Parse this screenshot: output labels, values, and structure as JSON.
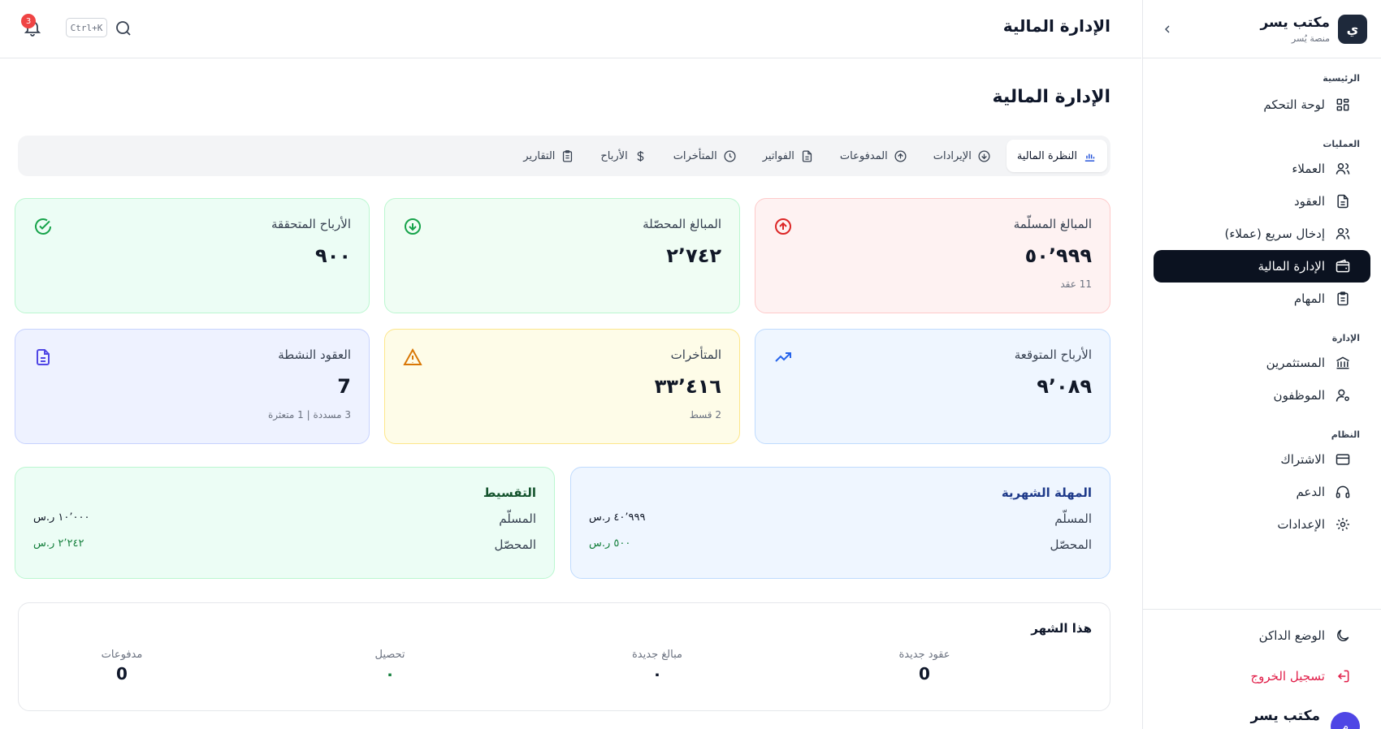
{
  "sidebar": {
    "logo_letter": "ي",
    "brand_name": "مكتب يسر",
    "brand_sub": "منصة يُسر",
    "groups": {
      "main": "الرئيسية",
      "operations": "العمليات",
      "management": "الإدارة",
      "system": "النظام"
    },
    "items": {
      "dashboard": "لوحة التحكم",
      "clients": "العملاء",
      "contracts": "العقود",
      "quick_entry": "إدخال سريع (عملاء)",
      "finance": "الإدارة المالية",
      "tasks": "المهام",
      "investors": "المستثمرين",
      "employees": "الموظفون",
      "subscription": "الاشتراك",
      "support": "الدعم",
      "settings": "الإعدادات",
      "dark_mode": "الوضع الداكن",
      "logout": "تسجيل الخروج"
    },
    "user": {
      "initial": "م",
      "name": "مكتب يسر"
    }
  },
  "header": {
    "title": "الإدارة المالية",
    "shortcut": "Ctrl+K",
    "notifications": "3"
  },
  "main": {
    "title": "الإدارة المالية",
    "tabs": {
      "overview": "النظرة المالية",
      "revenues": "الإيرادات",
      "payments": "المدفوعات",
      "invoices": "الفواتير",
      "overdue": "المتأخرات",
      "profits": "الأرباح",
      "reports": "التقارير"
    },
    "cards": {
      "delivered": {
        "title": "المبالغ المسلّمة",
        "value": "٥٠٬٩٩٩",
        "sub": "11 عقد"
      },
      "collected": {
        "title": "المبالغ المحصّلة",
        "value": "٢٬٧٤٢"
      },
      "realized": {
        "title": "الأرباح المتحققة",
        "value": "٩٠٠"
      },
      "expected": {
        "title": "الأرباح المتوقعة",
        "value": "٩٬٠٨٩"
      },
      "overdue": {
        "title": "المتأخرات",
        "value": "٣٣٬٤١٦",
        "sub": "2 قسط"
      },
      "active": {
        "title": "العقود النشطة",
        "value": "7",
        "sub": "3 مسددة | 1 متعثرة"
      }
    },
    "monthly_grace": {
      "title": "المهلة الشهرية",
      "delivered_label": "المسلّم",
      "delivered_value": "٤٠٬٩٩٩ ر.س",
      "collected_label": "المحصّل",
      "collected_value": "٥٠٠ ر.س"
    },
    "installment": {
      "title": "التقسيط",
      "delivered_label": "المسلّم",
      "delivered_value": "١٠٬٠٠٠ ر.س",
      "collected_label": "المحصّل",
      "collected_value": "٢٬٢٤٢ ر.س"
    },
    "this_month": {
      "title": "هذا الشهر",
      "new_contracts_label": "عقود جديدة",
      "new_contracts_value": "0",
      "new_amounts_label": "مبالغ جديدة",
      "new_amounts_value": "٠",
      "collection_label": "تحصيل",
      "collection_value": "٠",
      "payments_label": "مدفوعات",
      "payments_value": "0"
    }
  },
  "colors": {
    "accent_dark": "#0b1220",
    "danger": "#e11d48",
    "success": "#15803d",
    "title_blue": "#1e3a8a",
    "title_green": "#14532d"
  }
}
